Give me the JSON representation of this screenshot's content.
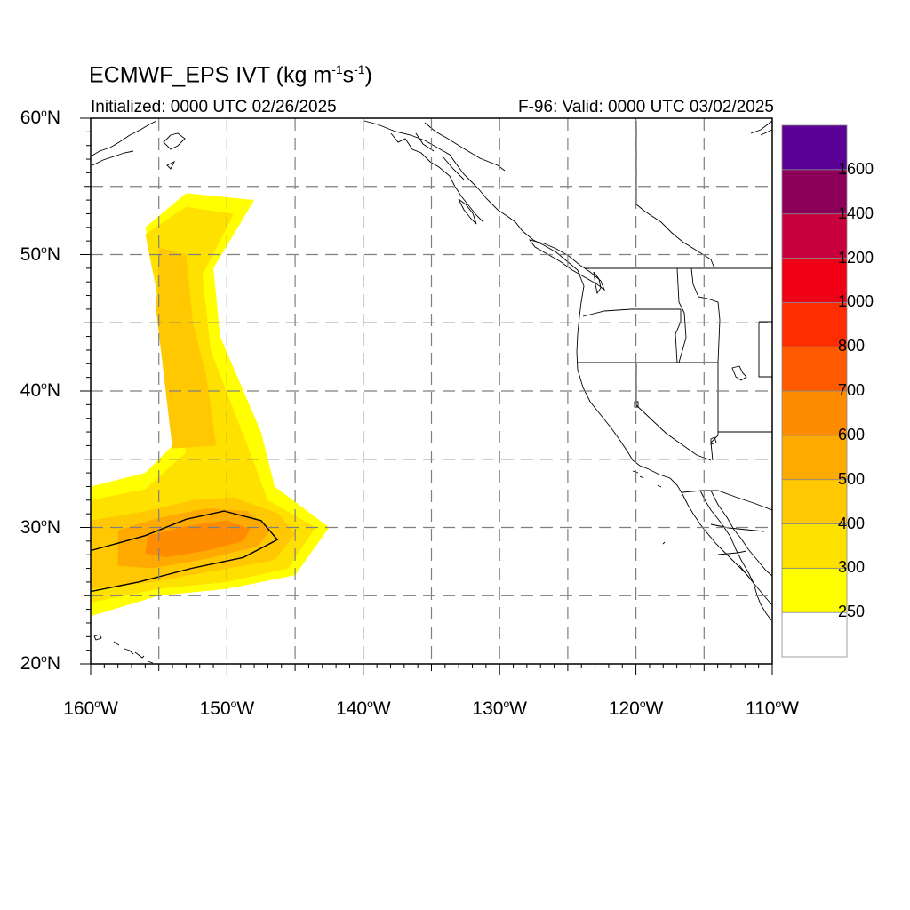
{
  "title": {
    "prefix": "ECMWF_EPS IVT (kg m",
    "exp1": "-1",
    "mid": "s",
    "exp2": "-1",
    "suffix": ")"
  },
  "subtitle_left": "Initialized: 0000 UTC 02/26/2025",
  "subtitle_right": "F-96: Valid: 0000 UTC 03/02/2025",
  "map": {
    "lon_range": [
      -160,
      -110
    ],
    "lat_range": [
      20,
      60
    ],
    "grid_style": "dashed",
    "lat_ticks": [
      {
        "value": 60,
        "num": "60",
        "sup": "o",
        "hem": "N"
      },
      {
        "value": 50,
        "num": "50",
        "sup": "o",
        "hem": "N"
      },
      {
        "value": 40,
        "num": "40",
        "sup": "o",
        "hem": "N"
      },
      {
        "value": 30,
        "num": "30",
        "sup": "o",
        "hem": "N"
      },
      {
        "value": 20,
        "num": "20",
        "sup": "o",
        "hem": "N"
      }
    ],
    "lon_ticks": [
      {
        "value": -160,
        "num": "160",
        "sup": "o",
        "hem": "W"
      },
      {
        "value": -150,
        "num": "150",
        "sup": "o",
        "hem": "W"
      },
      {
        "value": -140,
        "num": "140",
        "sup": "o",
        "hem": "W"
      },
      {
        "value": -130,
        "num": "130",
        "sup": "o",
        "hem": "W"
      },
      {
        "value": -120,
        "num": "120",
        "sup": "o",
        "hem": "W"
      },
      {
        "value": -110,
        "num": "110",
        "sup": "o",
        "hem": "W"
      }
    ]
  },
  "colorbar": {
    "colors": [
      "#ffffff",
      "#ffff00",
      "#ffe100",
      "#ffc800",
      "#ffaa00",
      "#ff8c00",
      "#ff5a00",
      "#ff2d00",
      "#f00014",
      "#c8003c",
      "#8c005a",
      "#5a0096"
    ],
    "labels": [
      "250",
      "300",
      "400",
      "500",
      "600",
      "700",
      "800",
      "1000",
      "1200",
      "1400",
      "1600"
    ]
  },
  "chart_data": {
    "type": "heatmap",
    "title": "ECMWF_EPS IVT (kg m-1s-1)",
    "xlabel": "",
    "ylabel": "",
    "xlim": [
      -160,
      -110
    ],
    "ylim": [
      20,
      60
    ],
    "levels": [
      250,
      300,
      400,
      500,
      600,
      700,
      800,
      1000,
      1200,
      1400,
      1600
    ],
    "features": [
      {
        "level": 250,
        "polygon": [
          [
            -160,
            33
          ],
          [
            -156,
            34
          ],
          [
            -153,
            37
          ],
          [
            -154,
            44
          ],
          [
            -156,
            52
          ],
          [
            -153,
            54.5
          ],
          [
            -148,
            54
          ],
          [
            -151,
            49
          ],
          [
            -150.5,
            44
          ],
          [
            -147.5,
            37
          ],
          [
            -146.5,
            33
          ],
          [
            -142.5,
            30
          ],
          [
            -145,
            26.5
          ],
          [
            -150,
            25.5
          ],
          [
            -155,
            25
          ],
          [
            -160,
            23.5
          ]
        ]
      },
      {
        "level": 300,
        "polygon": [
          [
            -160,
            32
          ],
          [
            -156,
            32.8
          ],
          [
            -153,
            35.5
          ],
          [
            -154.5,
            44
          ],
          [
            -156,
            51.5
          ],
          [
            -153,
            53.5
          ],
          [
            -149.5,
            53
          ],
          [
            -151.8,
            48.5
          ],
          [
            -151.2,
            43
          ],
          [
            -148.5,
            36
          ],
          [
            -147,
            32
          ],
          [
            -143.5,
            30
          ],
          [
            -145.5,
            27
          ],
          [
            -150,
            26
          ],
          [
            -155,
            25.5
          ],
          [
            -160,
            24.5
          ]
        ]
      },
      {
        "level": 400,
        "polygon": [
          [
            -160,
            30.5
          ],
          [
            -156,
            31.2
          ],
          [
            -152.5,
            32
          ],
          [
            -149.5,
            32.2
          ],
          [
            -146.2,
            31
          ],
          [
            -145,
            29.5
          ],
          [
            -146.5,
            27.6
          ],
          [
            -151,
            26.8
          ],
          [
            -155.5,
            26
          ],
          [
            -160,
            25.5
          ]
        ]
      },
      {
        "level": 400,
        "polygon": [
          [
            -155,
            50.5
          ],
          [
            -153,
            50
          ],
          [
            -152.5,
            45
          ],
          [
            -151.5,
            41
          ],
          [
            -150.8,
            36
          ],
          [
            -154,
            35.8
          ],
          [
            -154.5,
            40
          ],
          [
            -155.2,
            46
          ]
        ]
      },
      {
        "level": 500,
        "polygon": [
          [
            -158,
            29.8
          ],
          [
            -155,
            30.7
          ],
          [
            -151.5,
            31.4
          ],
          [
            -148.5,
            31.2
          ],
          [
            -146.8,
            29.8
          ],
          [
            -147.8,
            28.6
          ],
          [
            -151.5,
            27.7
          ],
          [
            -155.5,
            27
          ],
          [
            -158,
            27.2
          ]
        ]
      },
      {
        "level": 600,
        "polygon": [
          [
            -155.8,
            29.4
          ],
          [
            -153,
            30.1
          ],
          [
            -150,
            30.5
          ],
          [
            -148.3,
            29.9
          ],
          [
            -148.8,
            29
          ],
          [
            -151.5,
            28.3
          ],
          [
            -154.5,
            27.8
          ],
          [
            -156,
            28.1
          ]
        ]
      }
    ],
    "contour_600": [
      [
        -160,
        28.3
      ],
      [
        -156,
        29.4
      ],
      [
        -153,
        30.6
      ],
      [
        -150.2,
        31.2
      ],
      [
        -147.5,
        30.5
      ],
      [
        -146.3,
        29.1
      ],
      [
        -148.8,
        27.8
      ],
      [
        -152.6,
        27
      ],
      [
        -156.5,
        26
      ],
      [
        -160,
        25.3
      ]
    ]
  }
}
